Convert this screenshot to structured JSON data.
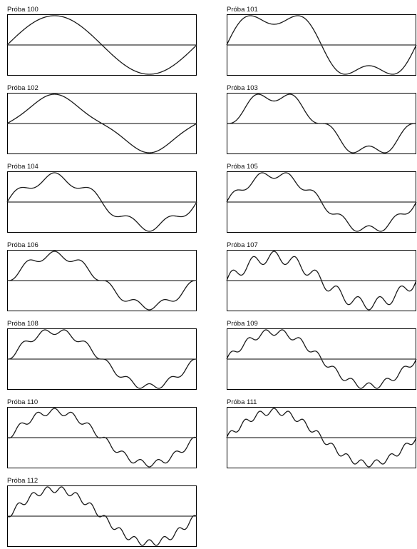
{
  "colors": {
    "frame": "#000000",
    "trace": "#1a1a1a",
    "axis": "#000000",
    "background": "#ffffff"
  },
  "chart_data": [
    {
      "type": "line",
      "title": "Próba 100",
      "harmonics": [
        {
          "n": 1,
          "amplitude": 1.0
        }
      ],
      "ylim": [
        -1.1,
        1.1
      ],
      "grid": false
    },
    {
      "type": "line",
      "title": "Próba 101",
      "harmonics": [
        {
          "n": 1,
          "amplitude": 1.0
        },
        {
          "n": 3,
          "amplitude": 0.333
        }
      ],
      "ylim": [
        -1.1,
        1.1
      ],
      "grid": false
    },
    {
      "type": "line",
      "title": "Próba 102",
      "harmonics": [
        {
          "n": 1,
          "amplitude": 1.0
        },
        {
          "n": 3,
          "amplitude": -0.111
        }
      ],
      "ylim": [
        -1.1,
        1.1
      ],
      "grid": false
    },
    {
      "type": "line",
      "title": "Próba 103",
      "harmonics": [
        {
          "n": 1,
          "amplitude": 1.0
        },
        {
          "n": 5,
          "amplitude": -0.2
        }
      ],
      "ylim": [
        -1.1,
        1.1
      ],
      "grid": false
    },
    {
      "type": "line",
      "title": "Próba 104",
      "harmonics": [
        {
          "n": 1,
          "amplitude": 1.0
        },
        {
          "n": 5,
          "amplitude": 0.2
        }
      ],
      "ylim": [
        -1.1,
        1.1
      ],
      "grid": false
    },
    {
      "type": "line",
      "title": "Próba 105",
      "harmonics": [
        {
          "n": 1,
          "amplitude": 1.0
        },
        {
          "n": 7,
          "amplitude": 0.143
        }
      ],
      "ylim": [
        -1.1,
        1.1
      ],
      "grid": false
    },
    {
      "type": "line",
      "title": "Próba 106",
      "harmonics": [
        {
          "n": 1,
          "amplitude": 1.0
        },
        {
          "n": 7,
          "amplitude": -0.143
        }
      ],
      "ylim": [
        -1.1,
        1.1
      ],
      "grid": false
    },
    {
      "type": "line",
      "title": "Próba 107",
      "harmonics": [
        {
          "n": 1,
          "amplitude": 1.0
        },
        {
          "n": 9,
          "amplitude": 0.25
        }
      ],
      "ylim": [
        -1.1,
        1.1
      ],
      "grid": false
    },
    {
      "type": "line",
      "title": "Próba 108",
      "harmonics": [
        {
          "n": 1,
          "amplitude": 1.0
        },
        {
          "n": 9,
          "amplitude": -0.111
        }
      ],
      "ylim": [
        -1.1,
        1.1
      ],
      "grid": false
    },
    {
      "type": "line",
      "title": "Próba 109",
      "harmonics": [
        {
          "n": 1,
          "amplitude": 1.0
        },
        {
          "n": 11,
          "amplitude": 0.12
        }
      ],
      "ylim": [
        -1.1,
        1.1
      ],
      "grid": false
    },
    {
      "type": "line",
      "title": "Próba 110",
      "harmonics": [
        {
          "n": 1,
          "amplitude": 1.0
        },
        {
          "n": 11,
          "amplitude": -0.12
        }
      ],
      "ylim": [
        -1.1,
        1.1
      ],
      "grid": false
    },
    {
      "type": "line",
      "title": "Próba 111",
      "harmonics": [
        {
          "n": 1,
          "amplitude": 1.0
        },
        {
          "n": 13,
          "amplitude": 0.12
        }
      ],
      "ylim": [
        -1.1,
        1.1
      ],
      "grid": false
    },
    {
      "type": "line",
      "title": "Próba 112",
      "harmonics": [
        {
          "n": 1,
          "amplitude": 1.0
        },
        {
          "n": 13,
          "amplitude": -0.12
        }
      ],
      "ylim": [
        -1.1,
        1.1
      ],
      "grid": false
    }
  ]
}
